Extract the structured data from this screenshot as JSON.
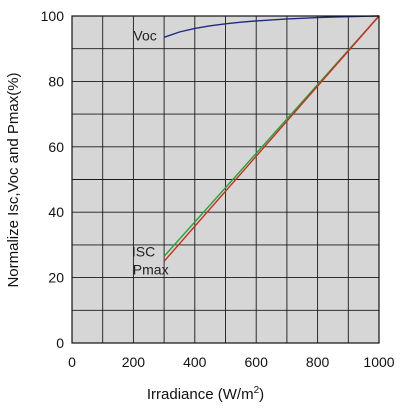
{
  "chart_data": {
    "type": "line",
    "title": "",
    "ylabel": "Normalize Isc,Voc and Pmax(%)",
    "xlabel": "Irradiance (W/m",
    "xlabel_sup": "2",
    "xlabel_close": ")",
    "xlim": [
      0,
      1000
    ],
    "ylim": [
      0,
      100
    ],
    "xticks": [
      0,
      200,
      400,
      600,
      800,
      1000
    ],
    "yticks": [
      0,
      20,
      40,
      60,
      80,
      100
    ],
    "grid": true,
    "grid_color": "#bdbdbd",
    "annotations": [
      {
        "text": "Voc",
        "x": 200,
        "y": 92.5
      },
      {
        "text": "ISC",
        "x": 195,
        "y": 26.5
      },
      {
        "text": "Pmax",
        "x": 198,
        "y": 21
      }
    ],
    "series": [
      {
        "id": "voc",
        "color": "#1f2a80",
        "x": [
          300,
          350,
          400,
          450,
          500,
          550,
          600,
          650,
          700,
          750,
          800,
          850,
          900,
          950,
          1000
        ],
        "y": [
          93.5,
          95.1,
          96.2,
          97.0,
          97.6,
          98.1,
          98.5,
          98.8,
          99.1,
          99.3,
          99.5,
          99.7,
          99.8,
          99.9,
          100
        ]
      },
      {
        "id": "isc",
        "color": "#1aa83a",
        "x": [
          300,
          1000
        ],
        "y": [
          26.5,
          100
        ]
      },
      {
        "id": "pmax",
        "color": "#d22a1e",
        "x": [
          300,
          1000
        ],
        "y": [
          25,
          100
        ]
      }
    ]
  }
}
